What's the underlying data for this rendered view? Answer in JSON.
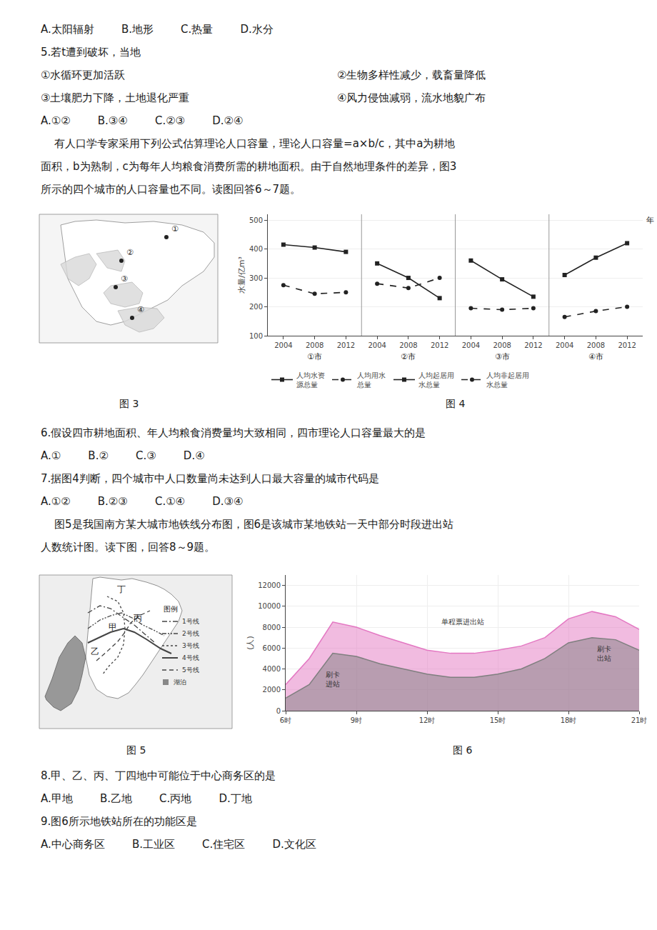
{
  "page_text": {
    "top": [
      [
        "A.太阳辐射        B.地形        C.热量        D.水分"
      ],
      [
        "5.若t遭到破坏，当地"
      ],
      [
        "①水循环更加活跃",
        "②生物多样性减少，载畜量降低"
      ],
      [
        "③土壤肥力下降，土地退化严重",
        "④风力侵蚀减弱，流水地貌广布"
      ],
      [
        "A.①②        B.③④        C.②③        D.②④"
      ],
      [
        "    有人口学专家采用下列公式估算理论人口容量，理论人口容量=a×b/c，其中a为耕地"
      ],
      [
        "面积，b为熟制，c为每年人均粮食消费所需的耕地面积。由于自然地理条件的差异，图3"
      ],
      [
        "所示的四个城市的人口容量也不同。读图回答6～7题。"
      ]
    ],
    "middle": [
      [
        "6.假设四市耕地面积、年人均粮食消费量均大致相同，四市理论人口容量最大的是"
      ],
      [
        "A.①        B.②        C.③        D.④"
      ],
      [
        "7.据图4判断，四个城市中人口数量尚未达到人口最大容量的城市代码是"
      ],
      [
        "A.①②        B.②③        C.①④        D.③④"
      ],
      [
        "    图5是我国南方某大城市地铁线分布图，图6是该城市某地铁站一天中部分时段进出站"
      ],
      [
        "人数统计图。读下图，回答8～9题。"
      ]
    ],
    "bottom": [
      [
        "8.甲、乙、丙、丁四地中可能位于中心商务区的是"
      ],
      [
        "A.甲地        B.乙地        C.丙地        D.丁地"
      ],
      [
        "9.图6所示地铁站所在的功能区是"
      ],
      [
        "A.中心商务区        B.工业区        C.住宅区        D.文化区"
      ]
    ]
  },
  "maps": [
    {
      "title": "图 3",
      "labels": [
        "①",
        "②",
        "③",
        "④"
      ]
    },
    {
      "title": "图 5",
      "labels": [
        "丁",
        "甲",
        "丙",
        "乙"
      ],
      "legend_title": "图例",
      "legend_lines": [
        "1号线",
        "2号线",
        "3号线",
        "4号线",
        "5号线"
      ],
      "lake": "湖泊"
    }
  ],
  "chart_data": [
    {
      "type": "line",
      "title": "图 4",
      "ylabel": "水量/亿m³",
      "xlabel": "年",
      "categories": [
        "2004",
        "2008",
        "2012",
        "2004",
        "2008",
        "2012",
        "2004",
        "2008",
        "2012",
        "2004",
        "2008",
        "2012"
      ],
      "groups": [
        "①市",
        "②市",
        "③市",
        "④市"
      ],
      "series": [
        {
          "name": "人均水资\n源总量",
          "color": "#222222",
          "marker": "square",
          "line_style": "solid",
          "values": [
            415,
            405,
            390,
            350,
            300,
            230,
            360,
            295,
            235,
            310,
            370,
            420
          ]
        },
        {
          "name": "人均用水\n总量",
          "color": "#222222",
          "marker": "circle",
          "line_style": "dash",
          "values": [
            275,
            245,
            250,
            280,
            265,
            300,
            195,
            190,
            195,
            165,
            185,
            200
          ]
        },
        {
          "name": "人均起居用\n水总量",
          "color": "#222222",
          "marker": "square",
          "line_style": "solid",
          "values": [
            null,
            null,
            null,
            null,
            null,
            null,
            null,
            null,
            null,
            null,
            null,
            null
          ]
        },
        {
          "name": "人均非起居用\n水总量",
          "color": "#222222",
          "marker": "circle",
          "line_style": "dash",
          "values": [
            null,
            null,
            null,
            null,
            null,
            null,
            null,
            null,
            null,
            null,
            null,
            null
          ]
        }
      ],
      "ylim": [
        100,
        520
      ],
      "yticks": [
        100,
        200,
        300,
        400,
        500
      ],
      "grid": "y",
      "legend": "bottom"
    },
    {
      "type": "area",
      "title": "图 6",
      "ylabel": "(人)",
      "x": [
        6,
        7,
        8,
        9,
        10,
        11,
        12,
        13,
        14,
        15,
        16,
        17,
        18,
        19,
        20,
        21
      ],
      "xlim": [
        6,
        21
      ],
      "xticks": [
        {
          "value": 6,
          "label": "6时"
        },
        {
          "value": 9,
          "label": "9时"
        },
        {
          "value": 12,
          "label": "12时"
        },
        {
          "value": 15,
          "label": "15时"
        },
        {
          "value": 18,
          "label": "18时"
        },
        {
          "value": 21,
          "label": "21时"
        }
      ],
      "ylim": [
        0,
        13000
      ],
      "yticks": [
        0,
        2000,
        4000,
        6000,
        8000,
        10000,
        12000
      ],
      "grid": true,
      "series": [
        {
          "values": [
            2500,
            5000,
            8500,
            8000,
            7200,
            6500,
            5800,
            5500,
            5500,
            5800,
            6200,
            7000,
            8800,
            9500,
            9000,
            7800
          ]
        },
        {
          "values": [
            1200,
            2500,
            5500,
            5200,
            4500,
            4000,
            3500,
            3200,
            3200,
            3500,
            4000,
            5000,
            6500,
            7000,
            6800,
            5800
          ]
        }
      ],
      "annotations": [
        {
          "text": "刷卡\n进站",
          "x": 8.0,
          "y": 3000
        },
        {
          "text": "刷卡\n出站",
          "x": 19.5,
          "y": 5500
        },
        {
          "text": "单程票进出站",
          "x": 13.5,
          "y": 8500
        }
      ]
    }
  ]
}
